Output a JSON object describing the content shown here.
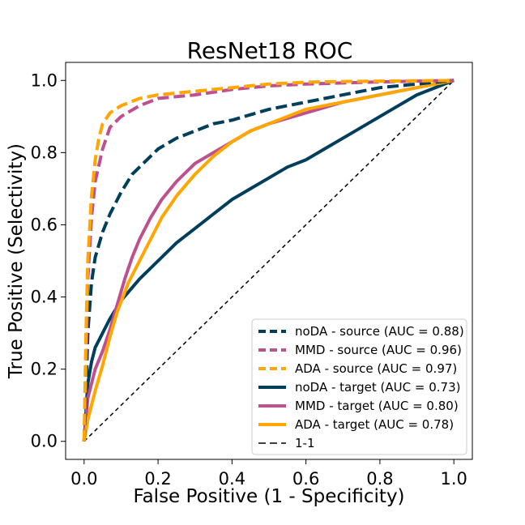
{
  "chart_data": {
    "type": "line",
    "title": "ResNet18 ROC",
    "xlabel": "False Positive (1 - Specificity)",
    "ylabel": "True Positive (Selectivity)",
    "xlim": [
      -0.05,
      1.05
    ],
    "ylim": [
      -0.05,
      1.05
    ],
    "xticks": [
      0.0,
      0.2,
      0.4,
      0.6,
      0.8,
      1.0
    ],
    "yticks": [
      0.0,
      0.2,
      0.4,
      0.6,
      0.8,
      1.0
    ],
    "xtick_labels": [
      "0.0",
      "0.2",
      "0.4",
      "0.6",
      "0.8",
      "1.0"
    ],
    "ytick_labels": [
      "0.0",
      "0.2",
      "0.4",
      "0.6",
      "0.8",
      "1.0"
    ],
    "grid": false,
    "legend_position": "lower-right",
    "series": [
      {
        "name": "noDA - source (AUC = 0.88)",
        "color": "#003f5c",
        "style": "dashed",
        "x": [
          0,
          0.005,
          0.01,
          0.02,
          0.03,
          0.05,
          0.07,
          0.1,
          0.13,
          0.16,
          0.2,
          0.25,
          0.3,
          0.35,
          0.4,
          0.5,
          0.6,
          0.7,
          0.8,
          0.9,
          1.0
        ],
        "y": [
          0,
          0.12,
          0.3,
          0.44,
          0.51,
          0.58,
          0.63,
          0.69,
          0.74,
          0.77,
          0.81,
          0.84,
          0.86,
          0.88,
          0.89,
          0.92,
          0.94,
          0.96,
          0.98,
          0.99,
          1.0
        ]
      },
      {
        "name": "MMD - source (AUC = 0.96)",
        "color": "#bc5090",
        "style": "dashed",
        "x": [
          0,
          0.005,
          0.01,
          0.02,
          0.03,
          0.05,
          0.07,
          0.1,
          0.15,
          0.2,
          0.3,
          0.4,
          0.5,
          0.6,
          0.7,
          0.8,
          0.9,
          1.0
        ],
        "y": [
          0,
          0.2,
          0.45,
          0.62,
          0.72,
          0.81,
          0.87,
          0.9,
          0.93,
          0.95,
          0.96,
          0.975,
          0.985,
          0.99,
          0.993,
          0.996,
          0.998,
          1.0
        ]
      },
      {
        "name": "ADA - source (AUC = 0.97)",
        "color": "#ffa600",
        "style": "dashed",
        "x": [
          0,
          0.005,
          0.01,
          0.02,
          0.03,
          0.04,
          0.05,
          0.07,
          0.1,
          0.15,
          0.2,
          0.3,
          0.4,
          0.5,
          0.6,
          0.7,
          0.8,
          0.9,
          1.0
        ],
        "y": [
          0,
          0.3,
          0.5,
          0.68,
          0.78,
          0.84,
          0.88,
          0.91,
          0.93,
          0.95,
          0.96,
          0.97,
          0.98,
          0.99,
          0.995,
          0.997,
          0.998,
          0.999,
          1.0
        ]
      },
      {
        "name": "noDA - target (AUC = 0.73)",
        "color": "#003f5c",
        "style": "solid",
        "x": [
          0,
          0.01,
          0.02,
          0.03,
          0.05,
          0.07,
          0.1,
          0.15,
          0.2,
          0.25,
          0.3,
          0.35,
          0.4,
          0.45,
          0.5,
          0.55,
          0.6,
          0.65,
          0.7,
          0.75,
          0.8,
          0.85,
          0.9,
          1.0
        ],
        "y": [
          0,
          0.16,
          0.22,
          0.26,
          0.3,
          0.34,
          0.39,
          0.45,
          0.5,
          0.55,
          0.59,
          0.63,
          0.67,
          0.7,
          0.73,
          0.76,
          0.78,
          0.81,
          0.84,
          0.87,
          0.9,
          0.93,
          0.96,
          1.0
        ]
      },
      {
        "name": "MMD - target (AUC = 0.80)",
        "color": "#bc5090",
        "style": "solid",
        "x": [
          0,
          0.01,
          0.02,
          0.03,
          0.05,
          0.07,
          0.09,
          0.11,
          0.13,
          0.15,
          0.18,
          0.21,
          0.25,
          0.3,
          0.35,
          0.4,
          0.45,
          0.5,
          0.6,
          0.7,
          0.8,
          0.9,
          1.0
        ],
        "y": [
          0,
          0.12,
          0.16,
          0.2,
          0.25,
          0.31,
          0.38,
          0.45,
          0.51,
          0.56,
          0.62,
          0.67,
          0.72,
          0.77,
          0.8,
          0.83,
          0.86,
          0.88,
          0.91,
          0.94,
          0.96,
          0.98,
          1.0
        ]
      },
      {
        "name": "ADA - target (AUC = 0.78)",
        "color": "#ffa600",
        "style": "solid",
        "x": [
          0,
          0.01,
          0.02,
          0.03,
          0.05,
          0.07,
          0.09,
          0.12,
          0.15,
          0.18,
          0.21,
          0.25,
          0.3,
          0.35,
          0.4,
          0.45,
          0.5,
          0.6,
          0.7,
          0.8,
          0.9,
          1.0
        ],
        "y": [
          0,
          0.06,
          0.1,
          0.14,
          0.21,
          0.29,
          0.36,
          0.44,
          0.5,
          0.56,
          0.62,
          0.68,
          0.74,
          0.79,
          0.83,
          0.86,
          0.88,
          0.92,
          0.94,
          0.96,
          0.98,
          1.0
        ]
      },
      {
        "name": "1-1",
        "color": "#000000",
        "style": "thin-dashed",
        "x": [
          0,
          1
        ],
        "y": [
          0,
          1
        ]
      }
    ]
  }
}
